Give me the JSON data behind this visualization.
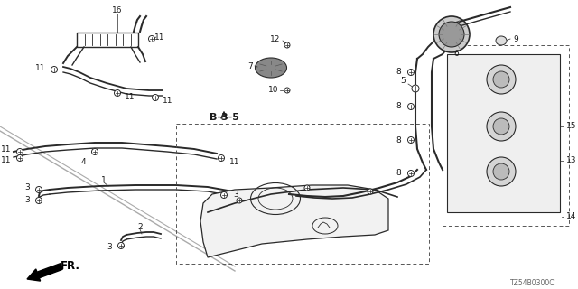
{
  "bg_color": "#ffffff",
  "line_color": "#2a2a2a",
  "diagram_code": "TZ54B0300C",
  "figsize": [
    6.4,
    3.2
  ],
  "dpi": 100
}
